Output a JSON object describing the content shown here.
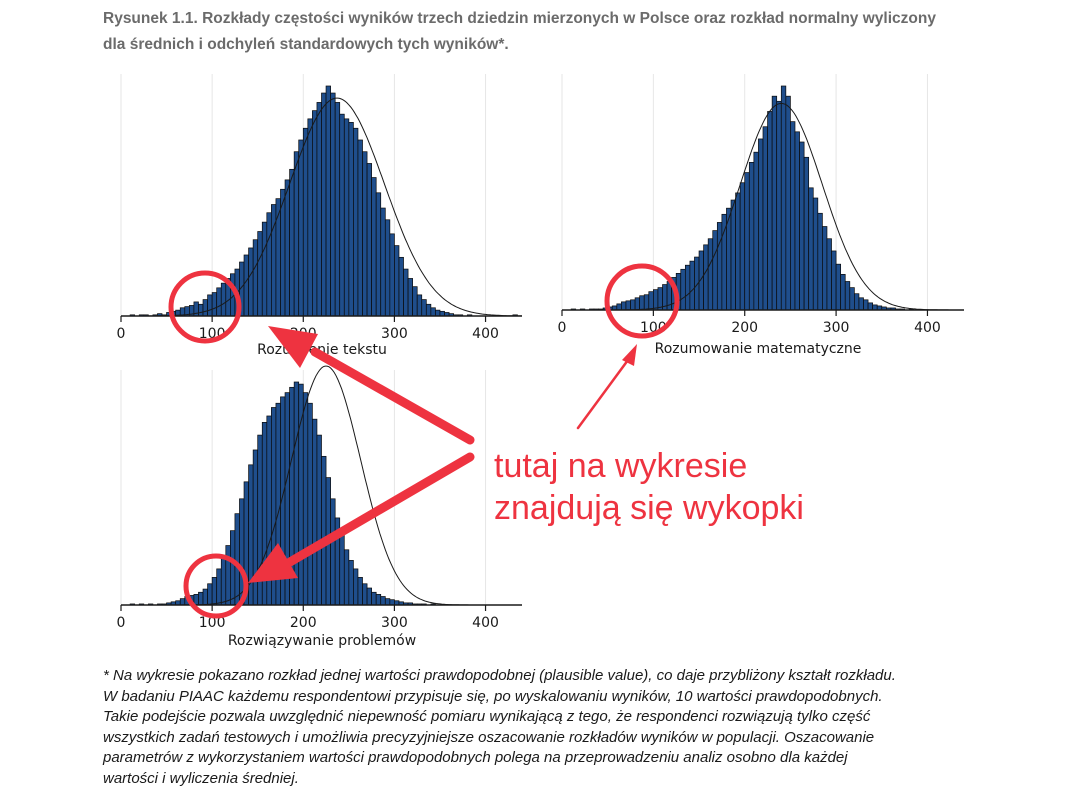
{
  "caption": {
    "line1": "Rysunek 1.1. Rozkłady częstości wyników trzech dziedzin mierzonych w Polsce oraz rozkład normalny wyliczony",
    "line2": "dla średnich i odchyleń standardowych tych wyników*."
  },
  "annotation": {
    "line1": "tutaj na wykresie",
    "line2": "znajdują się wykopki",
    "color": "#ee3340"
  },
  "footnote": {
    "lines": [
      "* Na wykresie pokazano rozkład jednej wartości prawdopodobnej (plausible value), co daje przybliżony kształt rozkładu.",
      "W badaniu PIAAC każdemu respondentowi przypisuje się, po wyskalowaniu wyników, 10 wartości prawdopodobnych.",
      "Takie podejście pozwala uwzględnić niepewność pomiaru wynikającą z tego, że respondenci rozwiązują tylko część",
      "wszystkich zadań testowych i umożliwia precyzyjniejsze oszacowanie rozkładów wyników w populacji. Oszacowanie",
      "parametrów z wykorzystaniem wartości prawdopodobnych polega na przeprowadzeniu analiz osobno dla każdej",
      "wartości i wyliczenia średniej."
    ]
  },
  "colors": {
    "bar_fill": "#1f4e8c",
    "bar_stroke": "#0a0a0a",
    "curve": "#1a1a1a",
    "circle": "#ee3340"
  },
  "chart_data": [
    {
      "type": "bar",
      "xlabel": "Rozumienie tekstu",
      "x_ticks": [
        0,
        100,
        200,
        300,
        400
      ],
      "xlim": [
        0,
        440
      ],
      "normal_curve": {
        "mean": 237,
        "sd": 52
      },
      "bin_start": 10,
      "bin_width": 5,
      "values": [
        1,
        0,
        1,
        1,
        0,
        1,
        2,
        1,
        3,
        4,
        5,
        7,
        8,
        9,
        12,
        10,
        14,
        18,
        20,
        24,
        28,
        32,
        36,
        40,
        46,
        52,
        58,
        65,
        72,
        80,
        88,
        95,
        100,
        108,
        116,
        125,
        140,
        150,
        160,
        168,
        175,
        182,
        190,
        196,
        190,
        182,
        172,
        168,
        165,
        160,
        150,
        140,
        130,
        118,
        105,
        92,
        82,
        70,
        60,
        50,
        40,
        32,
        25,
        18,
        14,
        10,
        7,
        5,
        4,
        3,
        2,
        1,
        1,
        0,
        1,
        0,
        0,
        0,
        0,
        0,
        0,
        0,
        0,
        0,
        1,
        0
      ]
    },
    {
      "type": "bar",
      "xlabel": "Rozumowanie matematyczne",
      "x_ticks": [
        0,
        100,
        200,
        300,
        400
      ],
      "xlim": [
        0,
        440
      ],
      "normal_curve": {
        "mean": 240,
        "sd": 45
      },
      "bin_start": 10,
      "bin_width": 5,
      "values": [
        1,
        0,
        1,
        0,
        1,
        1,
        1,
        2,
        3,
        4,
        6,
        8,
        9,
        10,
        12,
        14,
        15,
        18,
        20,
        22,
        25,
        28,
        32,
        36,
        40,
        44,
        48,
        52,
        58,
        64,
        70,
        78,
        86,
        94,
        100,
        108,
        115,
        125,
        135,
        145,
        155,
        168,
        180,
        195,
        210,
        205,
        220,
        210,
        185,
        175,
        165,
        150,
        120,
        110,
        95,
        82,
        70,
        58,
        45,
        35,
        28,
        22,
        16,
        12,
        10,
        7,
        5,
        4,
        3,
        2,
        2,
        1,
        1,
        0,
        1,
        0,
        0,
        0,
        0,
        0,
        0,
        0,
        0,
        0,
        0,
        0
      ]
    },
    {
      "type": "bar",
      "xlabel": "Rozwiązywanie problemów",
      "x_ticks": [
        0,
        100,
        200,
        300,
        400
      ],
      "xlim": [
        0,
        440
      ],
      "normal_curve": {
        "mean": 225,
        "sd": 38
      },
      "bin_start": 10,
      "bin_width": 5,
      "values": [
        1,
        0,
        1,
        0,
        1,
        0,
        1,
        1,
        2,
        3,
        4,
        6,
        8,
        9,
        10,
        12,
        15,
        20,
        26,
        34,
        44,
        56,
        70,
        86,
        100,
        116,
        132,
        146,
        160,
        172,
        178,
        186,
        190,
        196,
        200,
        205,
        210,
        208,
        200,
        190,
        175,
        160,
        140,
        120,
        100,
        82,
        66,
        52,
        42,
        34,
        26,
        20,
        16,
        12,
        10,
        8,
        6,
        5,
        4,
        3,
        2,
        2,
        1,
        1,
        1,
        0,
        1,
        0,
        0,
        0,
        0,
        0,
        0,
        0,
        0,
        0,
        0,
        0,
        0,
        0,
        0,
        0,
        0,
        0,
        0,
        0
      ]
    }
  ]
}
